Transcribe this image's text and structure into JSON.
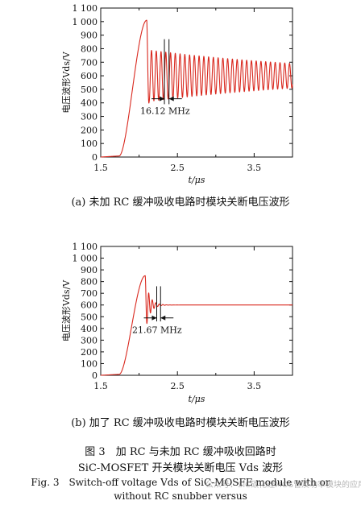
{
  "chart_data": [
    {
      "id": "a",
      "type": "line",
      "caption": "(a) 未加 RC 缓冲吸收电路时模块关断电压波形",
      "xlabel": "t/μs",
      "ylabel": "电压波形Vds/V",
      "xlim": [
        1.5,
        4.0
      ],
      "ylim": [
        0,
        1100
      ],
      "x_ticks": [
        1.5,
        2.5,
        3.5
      ],
      "x_tick_labels": [
        "1.5",
        "2.5",
        "3.5"
      ],
      "y_ticks": [
        0,
        100,
        200,
        300,
        400,
        500,
        600,
        700,
        800,
        900,
        1000,
        1100
      ],
      "y_tick_labels": [
        "0",
        "100",
        "200",
        "300",
        "400",
        "500",
        "600",
        "700",
        "800",
        "900",
        "1 000",
        "1 100"
      ],
      "grid": false,
      "series": [
        {
          "color": "#d9281e",
          "waveform": {
            "baseline": 0,
            "rise_start_t": 1.74,
            "peak_t": 2.1,
            "peak_v": 1010,
            "osc_start_t": 2.1,
            "settle_v": 600,
            "first_swing_low_v": 410,
            "end_amplitude_v": 90,
            "frequency_mhz": 16.12,
            "t_end": 4.0
          }
        }
      ],
      "annotation": {
        "label": "16.12 MHz",
        "marker_t": [
          2.33,
          2.39
        ],
        "marker_v_top": 870,
        "marker_v_bottom": 390,
        "arrow_v": 430
      }
    },
    {
      "id": "b",
      "type": "line",
      "caption": "(b) 加了 RC 缓冲吸收电路时模块关断电压波形",
      "xlabel": "t/μs",
      "ylabel": "电压波形Vds/V",
      "xlim": [
        1.5,
        4.0
      ],
      "ylim": [
        0,
        1100
      ],
      "x_ticks": [
        1.5,
        2.5,
        3.5
      ],
      "x_tick_labels": [
        "1.5",
        "2.5",
        "3.5"
      ],
      "y_ticks": [
        0,
        100,
        200,
        300,
        400,
        500,
        600,
        700,
        800,
        900,
        1000,
        1100
      ],
      "y_tick_labels": [
        "0",
        "100",
        "200",
        "300",
        "400",
        "500",
        "600",
        "700",
        "800",
        "900",
        "1 000",
        "1 100"
      ],
      "grid": false,
      "series": [
        {
          "color": "#d9281e",
          "waveform": {
            "baseline": 0,
            "rise_start_t": 1.74,
            "peak_t": 2.08,
            "peak_v": 850,
            "osc_start_t": 2.08,
            "settle_v": 600,
            "first_swing_low_v": 445,
            "end_amplitude_v": 0,
            "frequency_mhz": 21.67,
            "t_end": 4.0
          }
        }
      ],
      "annotation": {
        "label": "21.67 MHz",
        "marker_t": [
          2.23,
          2.28
        ],
        "marker_v_top": 760,
        "marker_v_bottom": 460,
        "arrow_v": 490
      }
    }
  ],
  "figure": {
    "title_cn_line1": "图 3　加 RC 与未加 RC 缓冲吸收回路时",
    "title_cn_line2": "SiC-MOSFET 开关模块关断电压 Vds 波形",
    "title_en_line1": "Fig. 3　Switch-off voltage Vds of SiC-MOSFE module with or",
    "title_en_line2": "without RC snubber versus"
  },
  "watermark": "公众号：SiC碳化硅MOS管及功率模块的应用"
}
